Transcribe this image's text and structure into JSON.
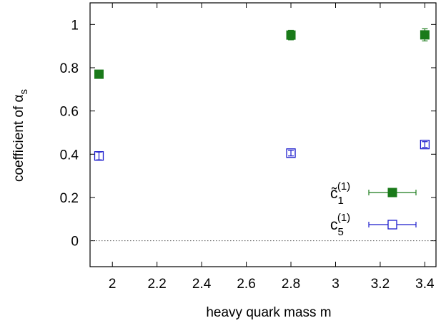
{
  "chart_data": {
    "type": "scatter",
    "title": "",
    "xlabel": "heavy quark mass m",
    "ylabel_main": "coefficient of α",
    "ylabel_sub": "s",
    "xlim": [
      1.9,
      3.45
    ],
    "ylim": [
      -0.12,
      1.1
    ],
    "xticks": [
      "2",
      "2.2",
      "2.4",
      "2.6",
      "2.8",
      "3",
      "3.2",
      "3.4"
    ],
    "xtick_values": [
      2,
      2.2,
      2.4,
      2.6,
      2.8,
      3,
      3.2,
      3.4
    ],
    "yticks": [
      "0",
      "0.2",
      "0.4",
      "0.6",
      "0.8",
      "1"
    ],
    "ytick_values": [
      0,
      0.2,
      0.4,
      0.6,
      0.8,
      1
    ],
    "zero_line": true,
    "legend_position": "bottom-right",
    "series": [
      {
        "name": "c̃1(1)",
        "legend_base": "c̃",
        "legend_sub": "1",
        "legend_sup": "(1)",
        "marker": "filled-square",
        "color": "#1a7a1a",
        "x": [
          1.94,
          2.8,
          3.4
        ],
        "y": [
          0.77,
          0.951,
          0.952
        ],
        "yerr": [
          0.015,
          0.022,
          0.028
        ]
      },
      {
        "name": "c5(1)",
        "legend_base": "c",
        "legend_sub": "5",
        "legend_sup": "(1)",
        "marker": "open-square",
        "color": "#1a1acc",
        "x": [
          1.94,
          2.8,
          3.4
        ],
        "y": [
          0.392,
          0.405,
          0.445
        ],
        "yerr": [
          0.018,
          0.013,
          0.013
        ]
      }
    ]
  }
}
